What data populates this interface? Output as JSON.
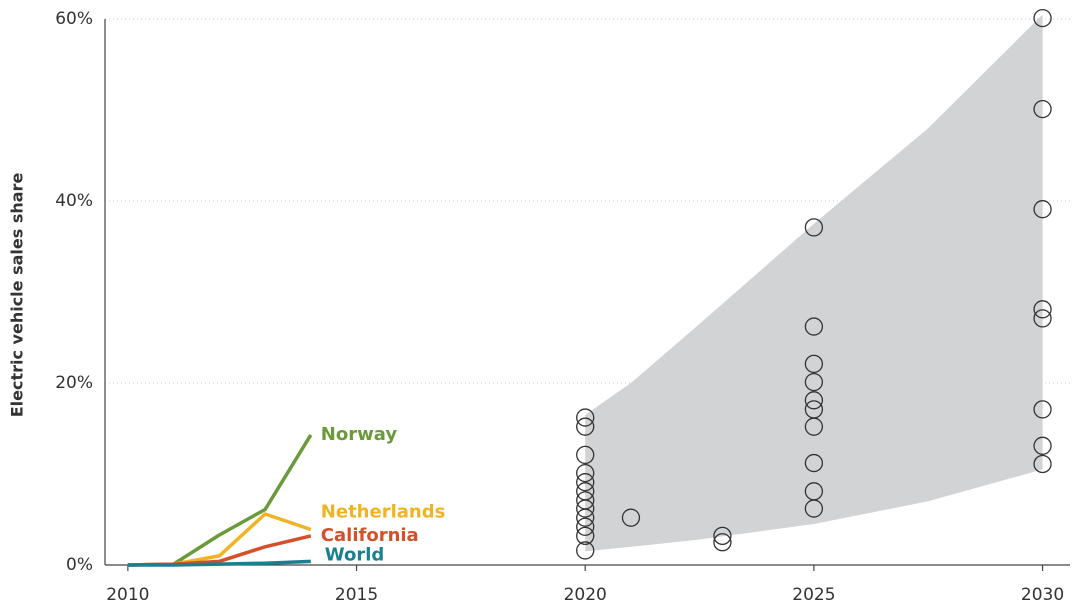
{
  "chart_data": {
    "type": "line",
    "y_label": "Electric vehicle sales share",
    "xlim": [
      2009.5,
      2030.6
    ],
    "ylim": [
      0,
      60
    ],
    "xticks": [
      2010,
      2015,
      2020,
      2025,
      2030
    ],
    "yticks": [
      {
        "value": 0,
        "label": "0%"
      },
      {
        "value": 20,
        "label": "20%"
      },
      {
        "value": 40,
        "label": "40%"
      },
      {
        "value": 60,
        "label": "60%"
      }
    ],
    "grid": true,
    "x": [
      2010,
      2011,
      2012,
      2013,
      2014
    ],
    "series": [
      {
        "name": "Norway",
        "color": "#6a9a3a",
        "values": [
          0,
          0.1,
          3.3,
          6.1,
          14.3
        ]
      },
      {
        "name": "Netherlands",
        "color": "#f0b323",
        "values": [
          0,
          0.1,
          1,
          5.6,
          3.9
        ]
      },
      {
        "name": "California",
        "color": "#d4502a",
        "values": [
          0,
          0.1,
          0.4,
          2,
          3.2
        ]
      },
      {
        "name": "World",
        "color": "#1a7f8e",
        "values": [
          0,
          0,
          0.1,
          0.2,
          0.4
        ]
      }
    ],
    "band": {
      "color": "#d1d3d4",
      "x": [
        2020,
        2021,
        2022.5,
        2025,
        2027.5,
        2030
      ],
      "lower": [
        1.5,
        2,
        2.8,
        4.5,
        7,
        10.5
      ],
      "upper": [
        16.5,
        20,
        26.5,
        37.5,
        48,
        60.5
      ]
    },
    "points": {
      "color": "#333333",
      "x": [
        2020,
        2020,
        2020,
        2020,
        2020,
        2020,
        2020,
        2020,
        2020,
        2020,
        2020,
        2020,
        2021,
        2023,
        2023,
        2025,
        2025,
        2025,
        2025,
        2025,
        2025,
        2025,
        2025,
        2025,
        2025,
        2030,
        2030,
        2030,
        2030,
        2030,
        2030,
        2030,
        2030
      ],
      "values": [
        16.2,
        15.2,
        12.1,
        10.1,
        9.1,
        8.1,
        7.1,
        6.2,
        5.2,
        4.2,
        3.2,
        1.6,
        5.2,
        3.2,
        2.5,
        37.1,
        26.2,
        22.1,
        20.1,
        18.1,
        17.1,
        15.2,
        11.2,
        8.1,
        6.2,
        60.1,
        50.1,
        39.1,
        28.1,
        27.1,
        17.1,
        13.1,
        11.1
      ]
    }
  }
}
